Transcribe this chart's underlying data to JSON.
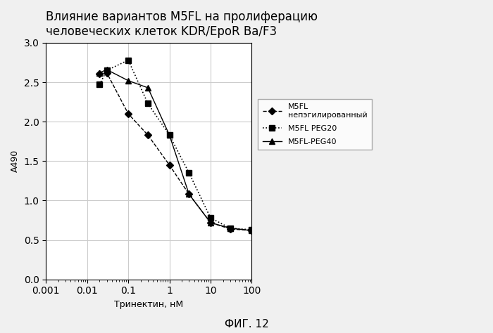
{
  "title_line1": "Влияние вариантов M5FL на пролиферацию",
  "title_line2": "человеческих клеток KDR/EpoR Ba/F3",
  "xlabel": "Тринектин, нМ",
  "ylabel": "A490",
  "figcaption": "ФИГ. 12",
  "ylim": [
    0,
    3.0
  ],
  "yticks": [
    0,
    0.5,
    1.0,
    1.5,
    2.0,
    2.5,
    3.0
  ],
  "xtick_labels": [
    "0.001",
    "0.01",
    "0.1",
    "1",
    "10",
    "100"
  ],
  "xtick_vals": [
    0.001,
    0.01,
    0.1,
    1,
    10,
    100
  ],
  "series": [
    {
      "label_line1": "M5FL",
      "label_line2": "непэгилированный",
      "color": "#000000",
      "linestyle": "--",
      "marker": "D",
      "markersize": 5,
      "linewidth": 1.0,
      "x": [
        0.02,
        0.03,
        0.1,
        0.3,
        1.0,
        3.0,
        10.0,
        30.0,
        100.0
      ],
      "y": [
        2.61,
        2.62,
        2.1,
        1.83,
        1.45,
        1.08,
        0.72,
        0.64,
        0.62
      ]
    },
    {
      "label": "M5FL PEG20",
      "color": "#000000",
      "linestyle": ":",
      "marker": "s",
      "markersize": 6,
      "linewidth": 1.2,
      "x": [
        0.02,
        0.03,
        0.1,
        0.3,
        1.0,
        3.0,
        10.0,
        30.0,
        100.0
      ],
      "y": [
        2.47,
        2.65,
        2.78,
        2.23,
        1.83,
        1.35,
        0.78,
        0.65,
        0.63
      ]
    },
    {
      "label": "M5FL-PEG40",
      "color": "#000000",
      "linestyle": "-",
      "marker": "^",
      "markersize": 6,
      "linewidth": 1.0,
      "x": [
        0.02,
        0.03,
        0.1,
        0.3,
        1.0,
        3.0,
        10.0,
        30.0,
        100.0
      ],
      "y": [
        2.62,
        2.66,
        2.52,
        2.43,
        1.83,
        1.08,
        0.72,
        0.65,
        0.62
      ]
    }
  ],
  "background_color": "#f0f0f0",
  "plot_bg_color": "#ffffff",
  "grid_color": "#cccccc",
  "legend_fontsize": 8,
  "axis_fontsize": 9,
  "title_fontsize": 12
}
